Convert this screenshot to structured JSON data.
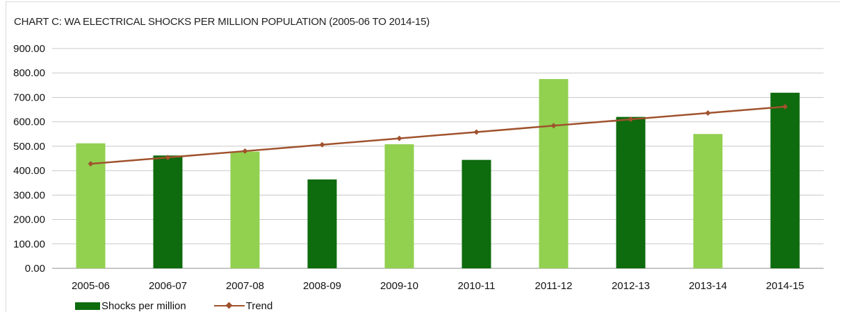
{
  "chart_data": {
    "type": "bar",
    "title": "CHART C: WA ELECTRICAL SHOCKS PER MILLION POPULATION (2005-06 TO 2014-15)",
    "categories": [
      "2005-06",
      "2006-07",
      "2007-08",
      "2008-09",
      "2009-10",
      "2010-11",
      "2011-12",
      "2012-13",
      "2013-14",
      "2014-15"
    ],
    "series": [
      {
        "name": "Shocks per million",
        "type": "bar",
        "values": [
          512,
          462,
          478,
          364,
          508,
          444,
          775,
          620,
          550,
          719
        ],
        "colors": [
          "#92d050",
          "#0e6b0e",
          "#92d050",
          "#0e6b0e",
          "#92d050",
          "#0e6b0e",
          "#92d050",
          "#0e6b0e",
          "#92d050",
          "#0e6b0e"
        ],
        "legend_color": "#0e6b0e"
      },
      {
        "name": "Trend",
        "type": "line",
        "values": [
          428,
          454,
          480,
          506,
          532,
          558,
          584,
          610,
          636,
          662
        ],
        "color": "#a0522d"
      }
    ],
    "yticks": [
      "0.00",
      "100.00",
      "200.00",
      "300.00",
      "400.00",
      "500.00",
      "600.00",
      "700.00",
      "800.00",
      "900.00"
    ],
    "ylim": [
      0,
      900
    ],
    "grid": true,
    "legend": "bottom-left"
  }
}
